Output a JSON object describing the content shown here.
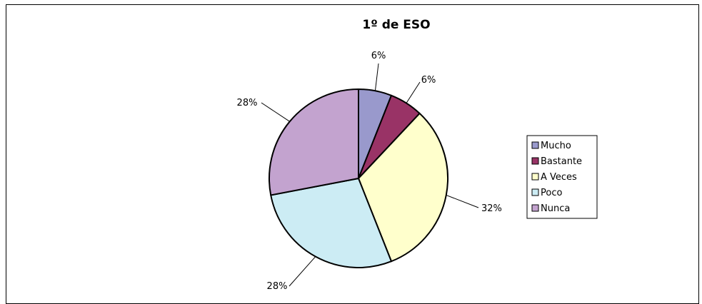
{
  "chart_data": {
    "type": "pie",
    "title": "1º de ESO",
    "categories": [
      "Mucho",
      "Bastante",
      "A Veces",
      "Poco",
      "Nunca"
    ],
    "values": [
      6,
      6,
      32,
      28,
      28
    ],
    "data_labels": [
      "6%",
      "6%",
      "32%",
      "28%",
      "28%"
    ],
    "colors": [
      "#9999cc",
      "#993366",
      "#ffffcc",
      "#ccecf4",
      "#c3a3cf"
    ],
    "legend_position": "right",
    "start_angle_deg": 0,
    "direction": "clockwise"
  }
}
